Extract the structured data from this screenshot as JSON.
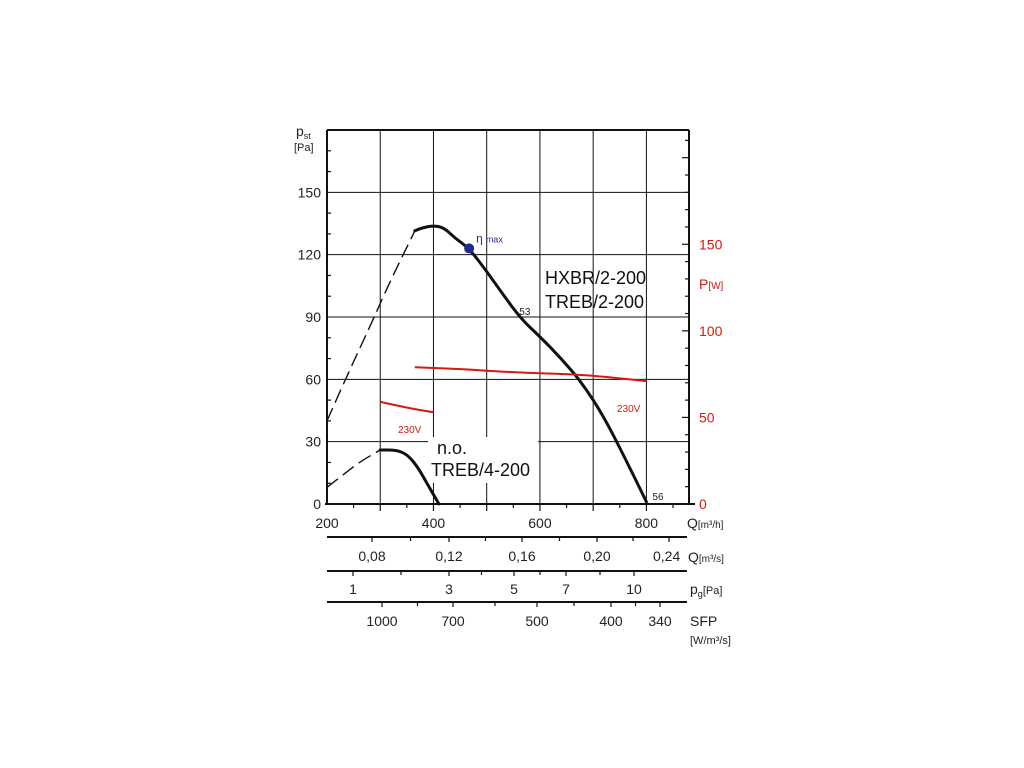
{
  "chart_data": {
    "type": "line",
    "title": "",
    "left_axis": {
      "symbol": "p",
      "subscript": "st",
      "unit": "[Pa]",
      "ticks": [
        0,
        30,
        60,
        90,
        120,
        150
      ],
      "ylim": [
        0,
        180
      ]
    },
    "right_axis": {
      "symbol": "P",
      "unit": "[W]",
      "color": "#d21a0f",
      "ticks": [
        0,
        50,
        100,
        150
      ],
      "ylim": [
        0,
        216
      ]
    },
    "x_axis": {
      "label": "Q",
      "unit": "[m³/h]",
      "ticks": [
        200,
        400,
        600,
        800
      ],
      "xlim": [
        200,
        880
      ],
      "grid": true
    },
    "secondary_scales": [
      {
        "id": "q_m3s",
        "label": "Q",
        "unit": "[m³/s]",
        "ticks": [
          {
            "value": 0.08,
            "text": "0,08"
          },
          {
            "value": 0.12,
            "text": "0,12"
          },
          {
            "value": 0.16,
            "text": "0,16"
          },
          {
            "value": 0.2,
            "text": "0,20"
          },
          {
            "value": 0.24,
            "text": "0,24"
          }
        ]
      },
      {
        "id": "pg",
        "label": "p",
        "subscript": "g",
        "unit": "[Pa]",
        "ticks": [
          {
            "value": 1,
            "text": "1"
          },
          {
            "value": 3,
            "text": "3"
          },
          {
            "value": 5,
            "text": "5"
          },
          {
            "value": 7,
            "text": "7"
          },
          {
            "value": 10,
            "text": "10"
          }
        ]
      },
      {
        "id": "sfp",
        "label": "SFP",
        "unit": "[W/m³/s]",
        "ticks": [
          {
            "value": 1000,
            "text": "1000"
          },
          {
            "value": 700,
            "text": "700"
          },
          {
            "value": 500,
            "text": "500"
          },
          {
            "value": 400,
            "text": "400"
          },
          {
            "value": 340,
            "text": "340"
          }
        ]
      }
    ],
    "series": [
      {
        "name": "HXBR/2-200 TREB/2-200",
        "axis": "left",
        "style": "solid",
        "color": "#111111",
        "x": [
          365,
          380,
          400,
          420,
          440,
          467,
          500,
          530,
          565,
          600,
          640,
          680,
          720,
          760,
          800
        ],
        "y": [
          131.5,
          133,
          134,
          133,
          128,
          123,
          112,
          101,
          89,
          80.5,
          70,
          58,
          42,
          22,
          1
        ]
      },
      {
        "name": "",
        "axis": "left",
        "style": "dashed",
        "color": "#111111",
        "x": [
          200,
          240,
          280,
          320,
          365
        ],
        "y": [
          40,
          63,
          85,
          108,
          131.5
        ]
      },
      {
        "name": "n.o. TREB/4-200",
        "axis": "left",
        "style": "solid",
        "color": "#111111",
        "x": [
          300,
          330,
          350,
          370,
          390,
          410
        ],
        "y": [
          26,
          26,
          24,
          18,
          9,
          0
        ]
      },
      {
        "name": "",
        "axis": "left",
        "style": "dashed",
        "color": "#111111",
        "x": [
          200,
          230,
          260,
          300
        ],
        "y": [
          8,
          14,
          20,
          26
        ]
      },
      {
        "name": "230V",
        "axis": "right",
        "style": "solid",
        "color": "#d21a0f",
        "x": [
          365,
          450,
          550,
          650,
          705,
          800
        ],
        "y": [
          79,
          78,
          76,
          75,
          74,
          71
        ]
      },
      {
        "name": "230V",
        "axis": "right",
        "style": "solid",
        "color": "#d21a0f",
        "x": [
          300,
          330,
          360,
          400
        ],
        "y": [
          59,
          57,
          55,
          53
        ]
      }
    ],
    "annotations": [
      {
        "text": "η",
        "sub": "max",
        "x": 467,
        "y": 123,
        "axis": "left",
        "kind": "eta-point",
        "color": "#1f2a8f"
      },
      {
        "text": "53",
        "x": 565,
        "y": 89,
        "axis": "left"
      },
      {
        "text": "56",
        "x": 800,
        "y": 1,
        "axis": "left"
      },
      {
        "text": "HXBR/2-200",
        "kind": "model"
      },
      {
        "text": "TREB/2-200",
        "kind": "model"
      },
      {
        "text": "n.o.",
        "kind": "model"
      },
      {
        "text": "TREB/4-200",
        "kind": "model"
      }
    ]
  }
}
